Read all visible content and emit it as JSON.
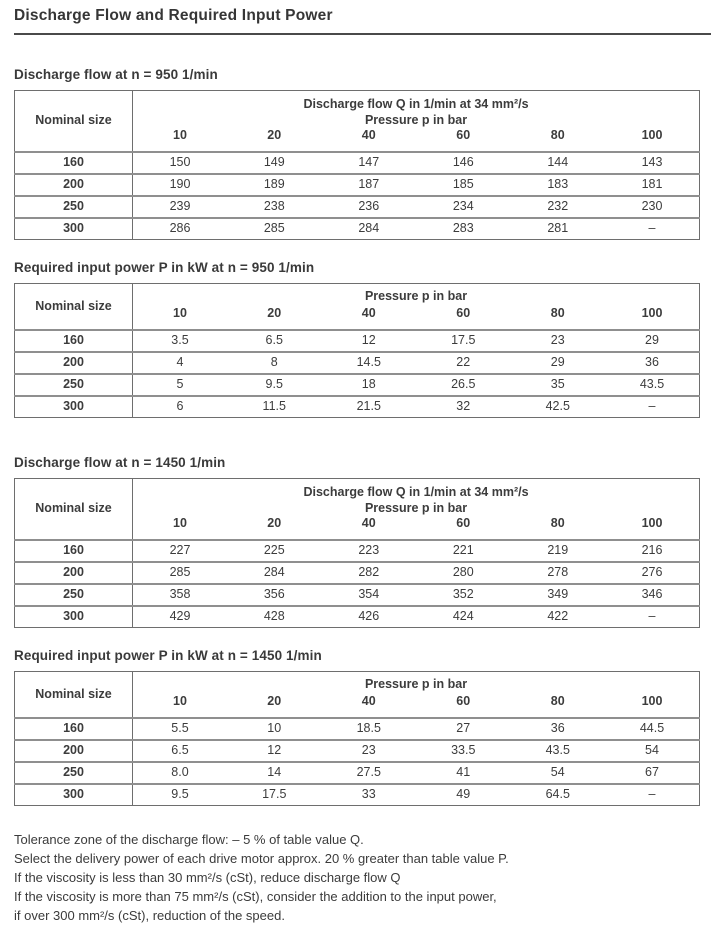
{
  "page": {
    "title": "Discharge Flow and Required Input Power"
  },
  "sections": [
    {
      "heading": "Discharge flow at n = 950 1/min",
      "table": {
        "corner_label": "Nominal size",
        "group_lines": [
          "Discharge flow Q in 1/min at 34 mm²/s",
          "Pressure p in bar"
        ],
        "pressures": [
          "10",
          "20",
          "40",
          "60",
          "80",
          "100"
        ],
        "rows": [
          [
            "160",
            "150",
            "149",
            "147",
            "146",
            "144",
            "143"
          ],
          [
            "200",
            "190",
            "189",
            "187",
            "185",
            "183",
            "181"
          ],
          [
            "250",
            "239",
            "238",
            "236",
            "234",
            "232",
            "230"
          ],
          [
            "300",
            "286",
            "285",
            "284",
            "283",
            "281",
            "–"
          ]
        ]
      }
    },
    {
      "heading": "Required input power P in kW at n = 950 1/min",
      "table": {
        "corner_label": "Nominal size",
        "group_lines": [
          "Pressure p in bar"
        ],
        "pressures": [
          "10",
          "20",
          "40",
          "60",
          "80",
          "100"
        ],
        "rows": [
          [
            "160",
            "3.5",
            "6.5",
            "12",
            "17.5",
            "23",
            "29"
          ],
          [
            "200",
            "4",
            "8",
            "14.5",
            "22",
            "29",
            "36"
          ],
          [
            "250",
            "5",
            "9.5",
            "18",
            "26.5",
            "35",
            "43.5"
          ],
          [
            "300",
            "6",
            "11.5",
            "21.5",
            "32",
            "42.5",
            "–"
          ]
        ]
      }
    },
    {
      "heading": "Discharge flow at n = 1450 1/min",
      "table": {
        "corner_label": "Nominal size",
        "group_lines": [
          "Discharge flow Q in 1/min at 34 mm²/s",
          "Pressure p in bar"
        ],
        "pressures": [
          "10",
          "20",
          "40",
          "60",
          "80",
          "100"
        ],
        "rows": [
          [
            "160",
            "227",
            "225",
            "223",
            "221",
            "219",
            "216"
          ],
          [
            "200",
            "285",
            "284",
            "282",
            "280",
            "278",
            "276"
          ],
          [
            "250",
            "358",
            "356",
            "354",
            "352",
            "349",
            "346"
          ],
          [
            "300",
            "429",
            "428",
            "426",
            "424",
            "422",
            "–"
          ]
        ]
      }
    },
    {
      "heading": "Required input power P in kW at n = 1450 1/min",
      "table": {
        "corner_label": "Nominal size",
        "group_lines": [
          "Pressure p in bar"
        ],
        "pressures": [
          "10",
          "20",
          "40",
          "60",
          "80",
          "100"
        ],
        "rows": [
          [
            "160",
            "5.5",
            "10",
            "18.5",
            "27",
            "36",
            "44.5"
          ],
          [
            "200",
            "6.5",
            "12",
            "23",
            "33.5",
            "43.5",
            "54"
          ],
          [
            "250",
            "8.0",
            "14",
            "27.5",
            "41",
            "54",
            "67"
          ],
          [
            "300",
            "9.5",
            "17.5",
            "33",
            "49",
            "64.5",
            "–"
          ]
        ]
      }
    }
  ],
  "notes": [
    "Tolerance zone of the discharge flow: – 5 % of table value Q.",
    "Select the delivery power of each drive motor approx. 20 % greater than table value P.",
    "If the viscosity is less than 30 mm²/s (cSt), reduce discharge flow Q",
    "If the viscosity is more than 75 mm²/s (cSt), consider the addition to the input power,",
    "if over 300 mm²/s (cSt), reduction of the speed."
  ]
}
